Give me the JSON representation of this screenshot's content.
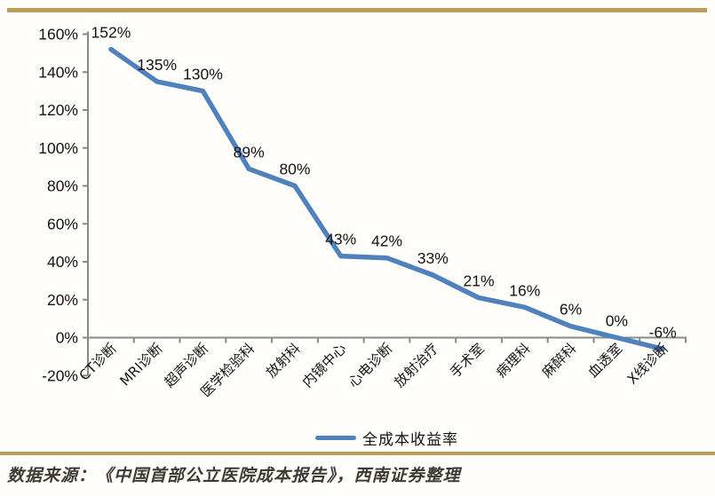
{
  "page": {
    "background_color": "#fffefb",
    "border_color": "#bd9b5a",
    "source_note": "数据来源：《中国首部公立医院成本报告》，西南证券整理"
  },
  "chart_data": {
    "type": "line",
    "title": "",
    "xlabel": "",
    "ylabel": "",
    "categories": [
      "CT诊断",
      "MRI诊断",
      "超声诊断",
      "医学检验科",
      "放射科",
      "内镜中心",
      "心电诊断",
      "放射治疗",
      "手术室",
      "病理科",
      "麻醉科",
      "血透室",
      "X线诊断"
    ],
    "series": [
      {
        "name": "全成本收益率",
        "values": [
          152,
          135,
          130,
          89,
          80,
          43,
          42,
          33,
          21,
          16,
          6,
          0,
          -6
        ],
        "data_labels": [
          "152%",
          "135%",
          "130%",
          "89%",
          "80%",
          "43%",
          "42%",
          "33%",
          "21%",
          "16%",
          "6%",
          "0%",
          "-6%"
        ]
      }
    ],
    "y_ticks": [
      {
        "label": "160%",
        "value": 160
      },
      {
        "label": "140%",
        "value": 140
      },
      {
        "label": "120%",
        "value": 120
      },
      {
        "label": "100%",
        "value": 100
      },
      {
        "label": "80%",
        "value": 80
      },
      {
        "label": "60%",
        "value": 60
      },
      {
        "label": "40%",
        "value": 40
      },
      {
        "label": "20%",
        "value": 20
      },
      {
        "label": "0%",
        "value": 0
      },
      {
        "label": "-20%",
        "value": -20
      }
    ],
    "ylim": [
      -20,
      160
    ],
    "grid": false,
    "legend": {
      "label": "全成本收益率",
      "position": "bottom"
    },
    "line_color": "#4f81bd",
    "axis_color": "#898989",
    "label_color": "#141414"
  }
}
